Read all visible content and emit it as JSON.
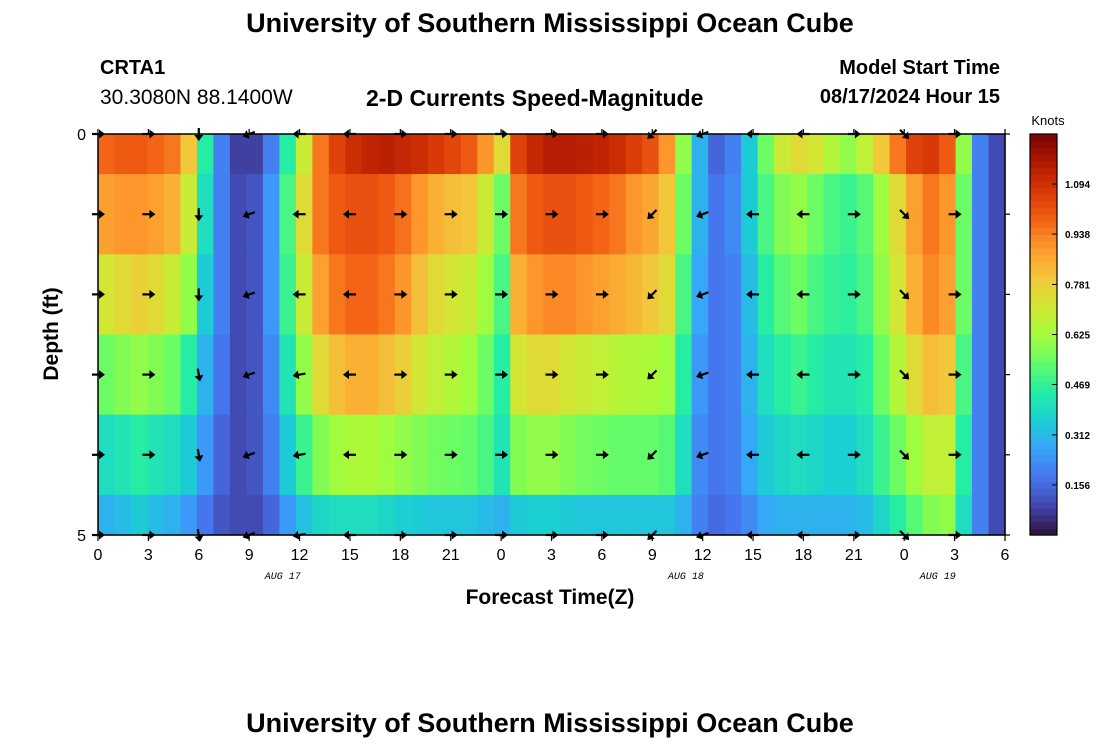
{
  "title": "University of Southern Mississippi Ocean Cube",
  "station": {
    "id": "CRTA1",
    "coords": "30.3080N  88.1400W"
  },
  "model": {
    "start_label": "Model Start Time",
    "start_value": "08/17/2024 Hour 15"
  },
  "chart_data": {
    "type": "heatmap",
    "title": "2-D Currents Speed-Magnitude",
    "xlabel": "Forecast Time(Z)",
    "ylabel": "Depth (ft)",
    "x_ticks": [
      "0",
      "3",
      "6",
      "9",
      "12",
      "15",
      "18",
      "21",
      "0",
      "3",
      "6",
      "9",
      "12",
      "15",
      "18",
      "21",
      "0",
      "3",
      "6"
    ],
    "y_ticks": [
      "0",
      "5"
    ],
    "y_range": [
      0,
      5
    ],
    "date_labels": [
      {
        "text": "AUG 17",
        "hour_index": 11
      },
      {
        "text": "AUG 18",
        "hour_index": 35
      },
      {
        "text": "AUG 19",
        "hour_index": 50
      }
    ],
    "colorbar": {
      "label": "Knots",
      "min": 0.0,
      "max": 1.25,
      "ticks": [
        "0.156",
        "0.312",
        "0.469",
        "0.625",
        "0.781",
        "0.938",
        "1.094"
      ],
      "colors": [
        "#30123b",
        "#4145ab",
        "#4675ed",
        "#39a2fc",
        "#1bcfd4",
        "#24eca6",
        "#61fc6c",
        "#a4fc3b",
        "#d1e834",
        "#f3c63a",
        "#fe9b2d",
        "#f36315",
        "#d93806",
        "#b11901",
        "#7a0403"
      ]
    },
    "hours": [
      0,
      1,
      2,
      3,
      4,
      5,
      6,
      7,
      8,
      9,
      10,
      11,
      12,
      13,
      14,
      15,
      16,
      17,
      18,
      19,
      20,
      21,
      22,
      23,
      24,
      25,
      26,
      27,
      28,
      29,
      30,
      31,
      32,
      33,
      34,
      35,
      36,
      37,
      38,
      39,
      40,
      41,
      42,
      43,
      44,
      45,
      46,
      47,
      48,
      49,
      50,
      51,
      52,
      53,
      54
    ],
    "layers": [
      {
        "depth": "0-0.5",
        "speed": [
          0.98,
          1.0,
          1.0,
          0.98,
          0.95,
          0.8,
          0.45,
          0.2,
          0.08,
          0.08,
          0.2,
          0.45,
          0.7,
          0.95,
          1.05,
          1.1,
          1.13,
          1.14,
          1.12,
          1.1,
          1.07,
          1.04,
          1.0,
          0.9,
          0.75,
          1.05,
          1.12,
          1.15,
          1.15,
          1.14,
          1.13,
          1.1,
          1.06,
          1.02,
          0.9,
          0.6,
          0.3,
          0.15,
          0.2,
          0.35,
          0.55,
          0.7,
          0.75,
          0.72,
          0.65,
          0.6,
          0.68,
          0.8,
          0.95,
          1.05,
          1.07,
          1.0,
          0.6,
          0.2,
          0.1
        ]
      },
      {
        "depth": "0.5-1.5",
        "speed": [
          0.88,
          0.9,
          0.9,
          0.88,
          0.85,
          0.7,
          0.4,
          0.2,
          0.1,
          0.12,
          0.25,
          0.5,
          0.75,
          0.95,
          1.0,
          1.02,
          1.02,
          1.0,
          0.96,
          0.9,
          0.85,
          0.82,
          0.8,
          0.7,
          0.55,
          0.95,
          1.0,
          1.02,
          1.02,
          1.0,
          0.98,
          0.95,
          0.9,
          0.87,
          0.8,
          0.55,
          0.3,
          0.18,
          0.22,
          0.35,
          0.5,
          0.58,
          0.6,
          0.55,
          0.5,
          0.48,
          0.52,
          0.62,
          0.75,
          0.88,
          0.95,
          0.9,
          0.55,
          0.2,
          0.1
        ]
      },
      {
        "depth": "1.5-2.5",
        "speed": [
          0.72,
          0.75,
          0.78,
          0.75,
          0.7,
          0.6,
          0.35,
          0.2,
          0.1,
          0.12,
          0.25,
          0.48,
          0.7,
          0.88,
          0.95,
          0.98,
          0.98,
          0.95,
          0.9,
          0.82,
          0.75,
          0.72,
          0.7,
          0.62,
          0.5,
          0.85,
          0.9,
          0.92,
          0.92,
          0.9,
          0.88,
          0.86,
          0.83,
          0.8,
          0.75,
          0.5,
          0.28,
          0.18,
          0.2,
          0.32,
          0.45,
          0.52,
          0.55,
          0.5,
          0.47,
          0.46,
          0.5,
          0.6,
          0.72,
          0.85,
          0.92,
          0.88,
          0.55,
          0.2,
          0.1
        ]
      },
      {
        "depth": "2.5-3.5",
        "speed": [
          0.55,
          0.58,
          0.6,
          0.58,
          0.55,
          0.45,
          0.3,
          0.18,
          0.1,
          0.12,
          0.22,
          0.42,
          0.6,
          0.75,
          0.82,
          0.85,
          0.85,
          0.82,
          0.78,
          0.72,
          0.68,
          0.65,
          0.62,
          0.55,
          0.45,
          0.72,
          0.75,
          0.75,
          0.72,
          0.7,
          0.68,
          0.66,
          0.65,
          0.64,
          0.62,
          0.45,
          0.25,
          0.18,
          0.2,
          0.3,
          0.4,
          0.45,
          0.48,
          0.45,
          0.42,
          0.42,
          0.45,
          0.55,
          0.65,
          0.75,
          0.82,
          0.8,
          0.5,
          0.2,
          0.1
        ]
      },
      {
        "depth": "3.5-4.5",
        "speed": [
          0.4,
          0.42,
          0.45,
          0.42,
          0.4,
          0.35,
          0.25,
          0.15,
          0.1,
          0.12,
          0.2,
          0.35,
          0.48,
          0.58,
          0.62,
          0.64,
          0.64,
          0.62,
          0.6,
          0.58,
          0.56,
          0.55,
          0.54,
          0.5,
          0.42,
          0.58,
          0.6,
          0.6,
          0.58,
          0.56,
          0.55,
          0.54,
          0.54,
          0.54,
          0.52,
          0.4,
          0.22,
          0.18,
          0.2,
          0.28,
          0.35,
          0.38,
          0.4,
          0.38,
          0.36,
          0.36,
          0.4,
          0.48,
          0.55,
          0.62,
          0.68,
          0.68,
          0.45,
          0.2,
          0.1
        ]
      },
      {
        "depth": "4.5-5",
        "speed": [
          0.3,
          0.32,
          0.35,
          0.32,
          0.3,
          0.25,
          0.18,
          0.12,
          0.1,
          0.1,
          0.15,
          0.25,
          0.33,
          0.38,
          0.4,
          0.4,
          0.4,
          0.38,
          0.36,
          0.35,
          0.34,
          0.34,
          0.34,
          0.32,
          0.3,
          0.35,
          0.36,
          0.36,
          0.35,
          0.34,
          0.34,
          0.34,
          0.34,
          0.34,
          0.34,
          0.3,
          0.2,
          0.16,
          0.18,
          0.22,
          0.28,
          0.3,
          0.3,
          0.3,
          0.3,
          0.3,
          0.32,
          0.38,
          0.45,
          0.52,
          0.58,
          0.6,
          0.4,
          0.2,
          0.1
        ]
      }
    ],
    "vector_columns": [
      {
        "hour": 0,
        "directions_deg": [
          90,
          90,
          90,
          90,
          90,
          90
        ]
      },
      {
        "hour": 3,
        "directions_deg": [
          90,
          90,
          90,
          90,
          90,
          90
        ]
      },
      {
        "hour": 6,
        "directions_deg": [
          180,
          180,
          180,
          170,
          170,
          170
        ]
      },
      {
        "hour": 9,
        "directions_deg": [
          250,
          250,
          250,
          250,
          250,
          250
        ]
      },
      {
        "hour": 12,
        "directions_deg": [
          270,
          270,
          270,
          260,
          260,
          260
        ]
      },
      {
        "hour": 15,
        "directions_deg": [
          270,
          270,
          270,
          270,
          270,
          270
        ]
      },
      {
        "hour": 18,
        "directions_deg": [
          90,
          90,
          90,
          90,
          90,
          90
        ]
      },
      {
        "hour": 21,
        "directions_deg": [
          90,
          90,
          90,
          90,
          90,
          90
        ]
      },
      {
        "hour": 24,
        "directions_deg": [
          90,
          90,
          90,
          90,
          90,
          90
        ]
      },
      {
        "hour": 27,
        "directions_deg": [
          90,
          90,
          90,
          90,
          90,
          90
        ]
      },
      {
        "hour": 30,
        "directions_deg": [
          90,
          90,
          90,
          90,
          90,
          90
        ]
      },
      {
        "hour": 33,
        "directions_deg": [
          225,
          225,
          225,
          225,
          225,
          225
        ]
      },
      {
        "hour": 36,
        "directions_deg": [
          250,
          250,
          250,
          250,
          250,
          250
        ]
      },
      {
        "hour": 39,
        "directions_deg": [
          270,
          270,
          270,
          270,
          270,
          270
        ]
      },
      {
        "hour": 42,
        "directions_deg": [
          270,
          270,
          270,
          270,
          270,
          270
        ]
      },
      {
        "hour": 45,
        "directions_deg": [
          90,
          90,
          90,
          90,
          90,
          90
        ]
      },
      {
        "hour": 48,
        "directions_deg": [
          135,
          135,
          135,
          135,
          135,
          135
        ]
      },
      {
        "hour": 51,
        "directions_deg": [
          90,
          90,
          90,
          90,
          90,
          90
        ]
      }
    ]
  }
}
